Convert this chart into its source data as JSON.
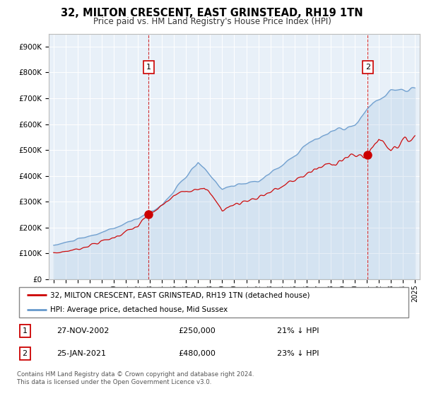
{
  "title": "32, MILTON CRESCENT, EAST GRINSTEAD, RH19 1TN",
  "subtitle": "Price paid vs. HM Land Registry's House Price Index (HPI)",
  "legend_label_red": "32, MILTON CRESCENT, EAST GRINSTEAD, RH19 1TN (detached house)",
  "legend_label_blue": "HPI: Average price, detached house, Mid Sussex",
  "sale1_date": "27-NOV-2002",
  "sale1_price": "£250,000",
  "sale1_hpi": "21% ↓ HPI",
  "sale1_year": 2002.9,
  "sale1_value": 250000,
  "sale2_date": "25-JAN-2021",
  "sale2_price": "£480,000",
  "sale2_hpi": "23% ↓ HPI",
  "sale2_year": 2021.07,
  "sale2_value": 480000,
  "footer": "Contains HM Land Registry data © Crown copyright and database right 2024.\nThis data is licensed under the Open Government Licence v3.0.",
  "ylim": [
    0,
    950000
  ],
  "yticks": [
    0,
    100000,
    200000,
    300000,
    400000,
    500000,
    600000,
    700000,
    800000,
    900000
  ],
  "ytick_labels": [
    "£0",
    "£100K",
    "£200K",
    "£300K",
    "£400K",
    "£500K",
    "£600K",
    "£700K",
    "£800K",
    "£900K"
  ],
  "red_color": "#cc0000",
  "blue_color": "#6699cc",
  "chart_bg": "#e8f0f8",
  "grid_color": "#ffffff",
  "outer_bg": "#ffffff"
}
